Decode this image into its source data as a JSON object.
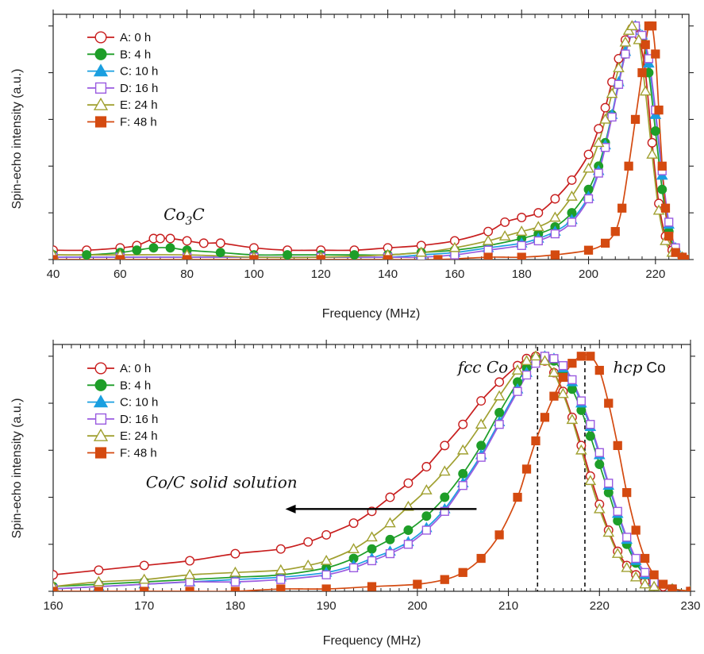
{
  "chart_data": [
    {
      "type": "line",
      "xlabel": "Frequency (MHz)",
      "ylabel": "Spin-echo intensity (a.u.)",
      "xlim": [
        40,
        230
      ],
      "ylim": [
        0,
        1.05
      ],
      "xticks": [
        40,
        60,
        80,
        100,
        120,
        140,
        160,
        180,
        200,
        220
      ],
      "legend_position": "top-left",
      "annotations": [
        {
          "id": "co3c",
          "text": "Co",
          "sub": "3",
          "tail": "C",
          "x": 73,
          "y": 0.17
        }
      ],
      "series": [
        {
          "name": "A: 0 h",
          "color": "#c81e1e",
          "marker": "circle-open",
          "x": [
            40,
            50,
            60,
            65,
            70,
            72,
            75,
            80,
            85,
            90,
            100,
            110,
            120,
            130,
            140,
            150,
            160,
            170,
            175,
            180,
            185,
            190,
            195,
            200,
            203,
            205,
            207,
            209,
            211,
            213,
            214,
            215,
            217,
            219,
            221,
            223,
            225,
            228,
            230
          ],
          "y": [
            0.04,
            0.04,
            0.05,
            0.06,
            0.09,
            0.09,
            0.09,
            0.08,
            0.07,
            0.07,
            0.05,
            0.04,
            0.04,
            0.04,
            0.05,
            0.06,
            0.08,
            0.12,
            0.16,
            0.18,
            0.2,
            0.26,
            0.34,
            0.45,
            0.56,
            0.65,
            0.76,
            0.86,
            0.94,
            0.99,
            1.0,
            0.96,
            0.8,
            0.5,
            0.24,
            0.1,
            0.04,
            0.01,
            0.0
          ]
        },
        {
          "name": "B: 4 h",
          "color": "#1e9e28",
          "marker": "circle-filled",
          "x": [
            40,
            50,
            60,
            65,
            70,
            75,
            80,
            90,
            100,
            110,
            120,
            130,
            140,
            150,
            160,
            170,
            180,
            185,
            190,
            195,
            200,
            203,
            205,
            207,
            209,
            211,
            213,
            214,
            216,
            218,
            220,
            222,
            224,
            226,
            228,
            230
          ],
          "y": [
            0.02,
            0.02,
            0.03,
            0.04,
            0.05,
            0.05,
            0.04,
            0.03,
            0.02,
            0.02,
            0.02,
            0.02,
            0.02,
            0.03,
            0.04,
            0.06,
            0.09,
            0.11,
            0.14,
            0.2,
            0.3,
            0.4,
            0.5,
            0.62,
            0.75,
            0.88,
            0.97,
            1.0,
            0.95,
            0.8,
            0.55,
            0.3,
            0.12,
            0.04,
            0.01,
            0.0
          ]
        },
        {
          "name": "C: 10 h",
          "color": "#1a9fe0",
          "marker": "triangle-filled",
          "x": [
            40,
            60,
            80,
            100,
            120,
            140,
            150,
            160,
            170,
            180,
            185,
            190,
            195,
            200,
            203,
            205,
            207,
            209,
            211,
            213,
            214,
            216,
            218,
            220,
            222,
            224,
            226,
            228,
            230
          ],
          "y": [
            0.01,
            0.01,
            0.01,
            0.01,
            0.01,
            0.01,
            0.02,
            0.03,
            0.05,
            0.07,
            0.09,
            0.12,
            0.17,
            0.27,
            0.38,
            0.49,
            0.62,
            0.76,
            0.89,
            0.98,
            1.0,
            0.96,
            0.84,
            0.62,
            0.36,
            0.15,
            0.05,
            0.01,
            0.0
          ]
        },
        {
          "name": "D: 16 h",
          "color": "#9a5be0",
          "marker": "square-open",
          "x": [
            40,
            60,
            80,
            100,
            120,
            140,
            150,
            160,
            170,
            180,
            185,
            190,
            195,
            200,
            203,
            205,
            207,
            209,
            211,
            213,
            214,
            216,
            218,
            220,
            222,
            224,
            226,
            228,
            230
          ],
          "y": [
            0.01,
            0.01,
            0.01,
            0.01,
            0.01,
            0.01,
            0.01,
            0.02,
            0.04,
            0.06,
            0.08,
            0.11,
            0.16,
            0.26,
            0.37,
            0.48,
            0.61,
            0.75,
            0.88,
            0.97,
            1.0,
            0.96,
            0.86,
            0.64,
            0.38,
            0.16,
            0.05,
            0.01,
            0.0
          ]
        },
        {
          "name": "E: 24 h",
          "color": "#a0a030",
          "marker": "triangle-open",
          "x": [
            40,
            60,
            80,
            100,
            120,
            140,
            150,
            160,
            170,
            175,
            180,
            185,
            190,
            195,
            200,
            203,
            205,
            207,
            209,
            211,
            212,
            213,
            215,
            217,
            219,
            221,
            223,
            225,
            228,
            230
          ],
          "y": [
            0.02,
            0.02,
            0.02,
            0.01,
            0.01,
            0.02,
            0.03,
            0.05,
            0.08,
            0.1,
            0.12,
            0.14,
            0.18,
            0.27,
            0.39,
            0.5,
            0.6,
            0.71,
            0.82,
            0.93,
            0.98,
            1.0,
            0.94,
            0.72,
            0.45,
            0.21,
            0.08,
            0.03,
            0.01,
            0.0
          ]
        },
        {
          "name": "F: 48 h",
          "color": "#d44a10",
          "marker": "square-filled",
          "x": [
            40,
            60,
            80,
            100,
            120,
            140,
            155,
            170,
            180,
            190,
            200,
            205,
            208,
            210,
            212,
            214,
            216,
            217,
            218,
            219,
            220,
            221,
            222,
            223,
            224,
            226,
            228,
            230
          ],
          "y": [
            0.0,
            0.0,
            0.0,
            0.0,
            0.0,
            0.0,
            0.0,
            0.01,
            0.01,
            0.02,
            0.04,
            0.07,
            0.12,
            0.22,
            0.4,
            0.6,
            0.8,
            0.92,
            1.0,
            1.0,
            0.88,
            0.64,
            0.4,
            0.22,
            0.1,
            0.03,
            0.01,
            0.0
          ]
        }
      ]
    },
    {
      "type": "line",
      "xlabel": "Frequency (MHz)",
      "ylabel": "Spin-echo intensity (a.u.)",
      "xlim": [
        160,
        230
      ],
      "ylim": [
        0,
        1.05
      ],
      "xticks": [
        160,
        170,
        180,
        190,
        200,
        210,
        220,
        230
      ],
      "legend_position": "top-left",
      "annotations": [
        {
          "id": "fcc",
          "text": "fcc Co",
          "x": 207.2,
          "y": 0.93
        },
        {
          "id": "hcp",
          "text_italic": "hcp",
          "text_plain": "Co",
          "x": 221.5,
          "y": 0.93
        },
        {
          "id": "solid",
          "text": "Co/C solid solution",
          "x": 178.5,
          "y": 0.44
        }
      ],
      "arrow": {
        "x_from": 206.5,
        "x_to": 185.5,
        "y": 0.35
      },
      "vlines": [
        213.2,
        218.4
      ],
      "series": [
        {
          "name": "A: 0 h",
          "color": "#c81e1e",
          "marker": "circle-open",
          "x": [
            160,
            165,
            170,
            175,
            180,
            185,
            188,
            190,
            193,
            195,
            197,
            199,
            201,
            203,
            205,
            207,
            209,
            211,
            212,
            213,
            214,
            215,
            216,
            217,
            218,
            219,
            220,
            221,
            222,
            223,
            224,
            225,
            226,
            227,
            228,
            230
          ],
          "y": [
            0.07,
            0.09,
            0.11,
            0.13,
            0.16,
            0.18,
            0.21,
            0.24,
            0.29,
            0.34,
            0.4,
            0.46,
            0.53,
            0.62,
            0.71,
            0.81,
            0.89,
            0.96,
            0.99,
            1.0,
            0.98,
            0.93,
            0.85,
            0.74,
            0.62,
            0.49,
            0.37,
            0.26,
            0.17,
            0.11,
            0.07,
            0.04,
            0.03,
            0.02,
            0.01,
            0.0
          ]
        },
        {
          "name": "B: 4 h",
          "color": "#1e9e28",
          "marker": "circle-filled",
          "x": [
            160,
            165,
            170,
            175,
            180,
            185,
            190,
            193,
            195,
            197,
            199,
            201,
            203,
            205,
            207,
            209,
            211,
            212,
            213,
            214,
            215,
            216,
            217,
            218,
            219,
            220,
            221,
            222,
            223,
            224,
            225,
            226,
            228,
            230
          ],
          "y": [
            0.02,
            0.03,
            0.04,
            0.05,
            0.06,
            0.07,
            0.1,
            0.14,
            0.18,
            0.22,
            0.26,
            0.32,
            0.4,
            0.5,
            0.62,
            0.76,
            0.89,
            0.95,
            0.99,
            1.0,
            0.98,
            0.93,
            0.86,
            0.77,
            0.66,
            0.54,
            0.42,
            0.3,
            0.2,
            0.12,
            0.07,
            0.04,
            0.01,
            0.0
          ]
        },
        {
          "name": "C: 10 h",
          "color": "#1a9fe0",
          "marker": "triangle-filled",
          "x": [
            160,
            165,
            170,
            175,
            180,
            185,
            190,
            193,
            195,
            197,
            199,
            201,
            203,
            205,
            207,
            209,
            211,
            212,
            213,
            214,
            215,
            216,
            217,
            218,
            219,
            220,
            221,
            222,
            223,
            224,
            225,
            226,
            228,
            230
          ],
          "y": [
            0.01,
            0.02,
            0.03,
            0.04,
            0.05,
            0.06,
            0.08,
            0.11,
            0.14,
            0.17,
            0.21,
            0.27,
            0.35,
            0.46,
            0.58,
            0.72,
            0.86,
            0.93,
            0.98,
            1.0,
            0.99,
            0.95,
            0.89,
            0.8,
            0.7,
            0.58,
            0.45,
            0.33,
            0.22,
            0.13,
            0.07,
            0.04,
            0.01,
            0.0
          ]
        },
        {
          "name": "D: 16 h",
          "color": "#9a5be0",
          "marker": "square-open",
          "x": [
            160,
            165,
            170,
            175,
            180,
            185,
            190,
            193,
            195,
            197,
            199,
            201,
            203,
            205,
            207,
            209,
            211,
            212,
            213,
            214,
            215,
            216,
            217,
            218,
            219,
            220,
            221,
            222,
            223,
            224,
            225,
            226,
            228,
            230
          ],
          "y": [
            0.01,
            0.02,
            0.03,
            0.04,
            0.04,
            0.05,
            0.07,
            0.1,
            0.13,
            0.16,
            0.2,
            0.26,
            0.34,
            0.45,
            0.57,
            0.71,
            0.85,
            0.92,
            0.97,
            1.0,
            0.99,
            0.96,
            0.9,
            0.81,
            0.71,
            0.59,
            0.46,
            0.34,
            0.23,
            0.14,
            0.08,
            0.04,
            0.01,
            0.0
          ]
        },
        {
          "name": "E: 24 h",
          "color": "#a0a030",
          "marker": "triangle-open",
          "x": [
            160,
            165,
            170,
            175,
            180,
            185,
            188,
            190,
            193,
            195,
            197,
            199,
            201,
            203,
            205,
            207,
            209,
            211,
            212,
            213,
            214,
            215,
            216,
            217,
            218,
            219,
            220,
            221,
            222,
            223,
            224,
            225,
            226,
            228,
            230
          ],
          "y": [
            0.02,
            0.04,
            0.05,
            0.07,
            0.08,
            0.09,
            0.11,
            0.13,
            0.18,
            0.23,
            0.29,
            0.36,
            0.43,
            0.51,
            0.6,
            0.71,
            0.83,
            0.94,
            0.98,
            1.0,
            0.98,
            0.93,
            0.84,
            0.73,
            0.6,
            0.47,
            0.35,
            0.25,
            0.16,
            0.1,
            0.06,
            0.03,
            0.02,
            0.01,
            0.0
          ]
        },
        {
          "name": "F: 48 h",
          "color": "#d44a10",
          "marker": "square-filled",
          "x": [
            160,
            165,
            170,
            175,
            180,
            185,
            190,
            195,
            200,
            203,
            205,
            207,
            209,
            211,
            212,
            213,
            214,
            215,
            216,
            217,
            218,
            219,
            220,
            221,
            222,
            223,
            224,
            225,
            226,
            227,
            228,
            230
          ],
          "y": [
            0.0,
            0.0,
            0.0,
            0.0,
            0.0,
            0.01,
            0.01,
            0.02,
            0.03,
            0.05,
            0.08,
            0.14,
            0.24,
            0.4,
            0.52,
            0.64,
            0.74,
            0.83,
            0.91,
            0.97,
            1.0,
            1.0,
            0.94,
            0.8,
            0.62,
            0.42,
            0.26,
            0.14,
            0.07,
            0.03,
            0.01,
            0.0
          ]
        }
      ]
    }
  ]
}
